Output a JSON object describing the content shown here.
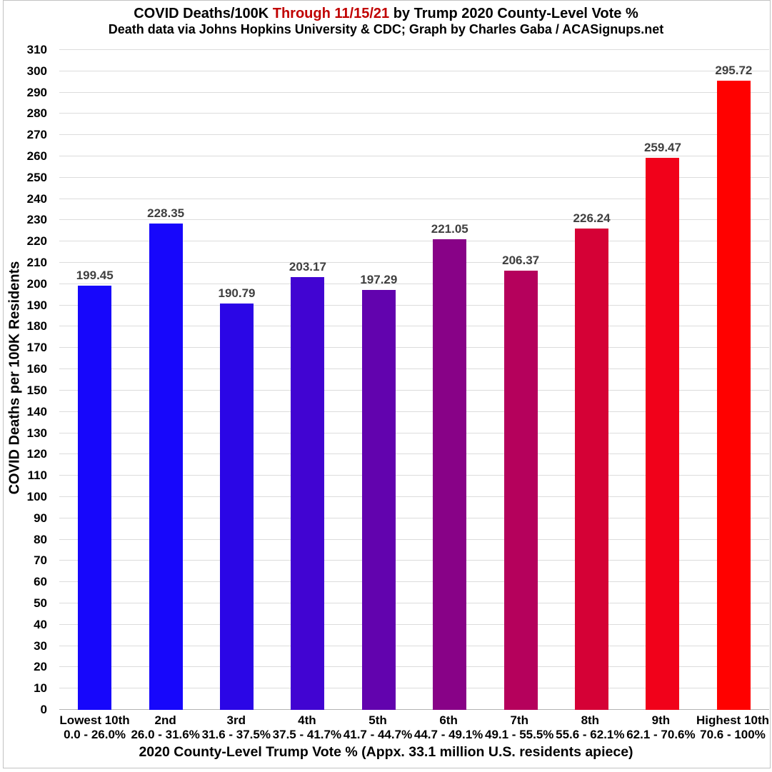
{
  "header": {
    "title_prefix": "COVID Deaths/100K ",
    "title_highlight": "Through 11/15/21",
    "title_suffix": " by Trump 2020 County-Level Vote %",
    "subtitle": "Death data via Johns Hopkins University & CDC; Graph by Charles Gaba / ACASignups.net",
    "highlight_color": "#c00000"
  },
  "chart_data": {
    "type": "bar",
    "title": "COVID Deaths/100K Through 11/15/21 by Trump 2020 County-Level Vote %",
    "subtitle": "Death data via Johns Hopkins University & CDC; Graph by Charles Gaba / ACASignups.net",
    "xlabel": "2020 County-Level Trump Vote % (Appx. 33.1 million U.S. residents apiece)",
    "ylabel": "COVID Deaths per 100K Residents",
    "ylim": [
      0,
      310
    ],
    "ytick_step": 10,
    "grid": true,
    "legend": "none",
    "categories": [
      "Lowest 10th",
      "2nd",
      "3rd",
      "4th",
      "5th",
      "6th",
      "7th",
      "8th",
      "9th",
      "Highest 10th"
    ],
    "category_ranges": [
      "0.0 - 26.0%",
      "26.0 - 31.6%",
      "31.6 - 37.5%",
      "37.5 - 41.7%",
      "41.7 - 44.7%",
      "44.7 - 49.1%",
      "49.1 - 55.5%",
      "55.6 - 62.1%",
      "62.1 - 70.6%",
      "70.6 - 100%"
    ],
    "values": [
      199.45,
      228.35,
      190.79,
      203.17,
      197.29,
      221.05,
      206.37,
      226.24,
      259.47,
      295.72
    ],
    "value_labels": [
      "199.45",
      "228.35",
      "190.79",
      "203.17",
      "197.29",
      "221.05",
      "206.37",
      "226.24",
      "259.47",
      "295.72"
    ],
    "bar_colors": [
      "#1707fb",
      "#1707fb",
      "#2b06e6",
      "#4104d2",
      "#6203ae",
      "#880287",
      "#b5015c",
      "#d50136",
      "#f1011a",
      "#ff0100"
    ],
    "value_label_color": "#3f3f3f",
    "gridline_color": "#dcdcdc",
    "baseline_color": "#b3b3b3"
  }
}
